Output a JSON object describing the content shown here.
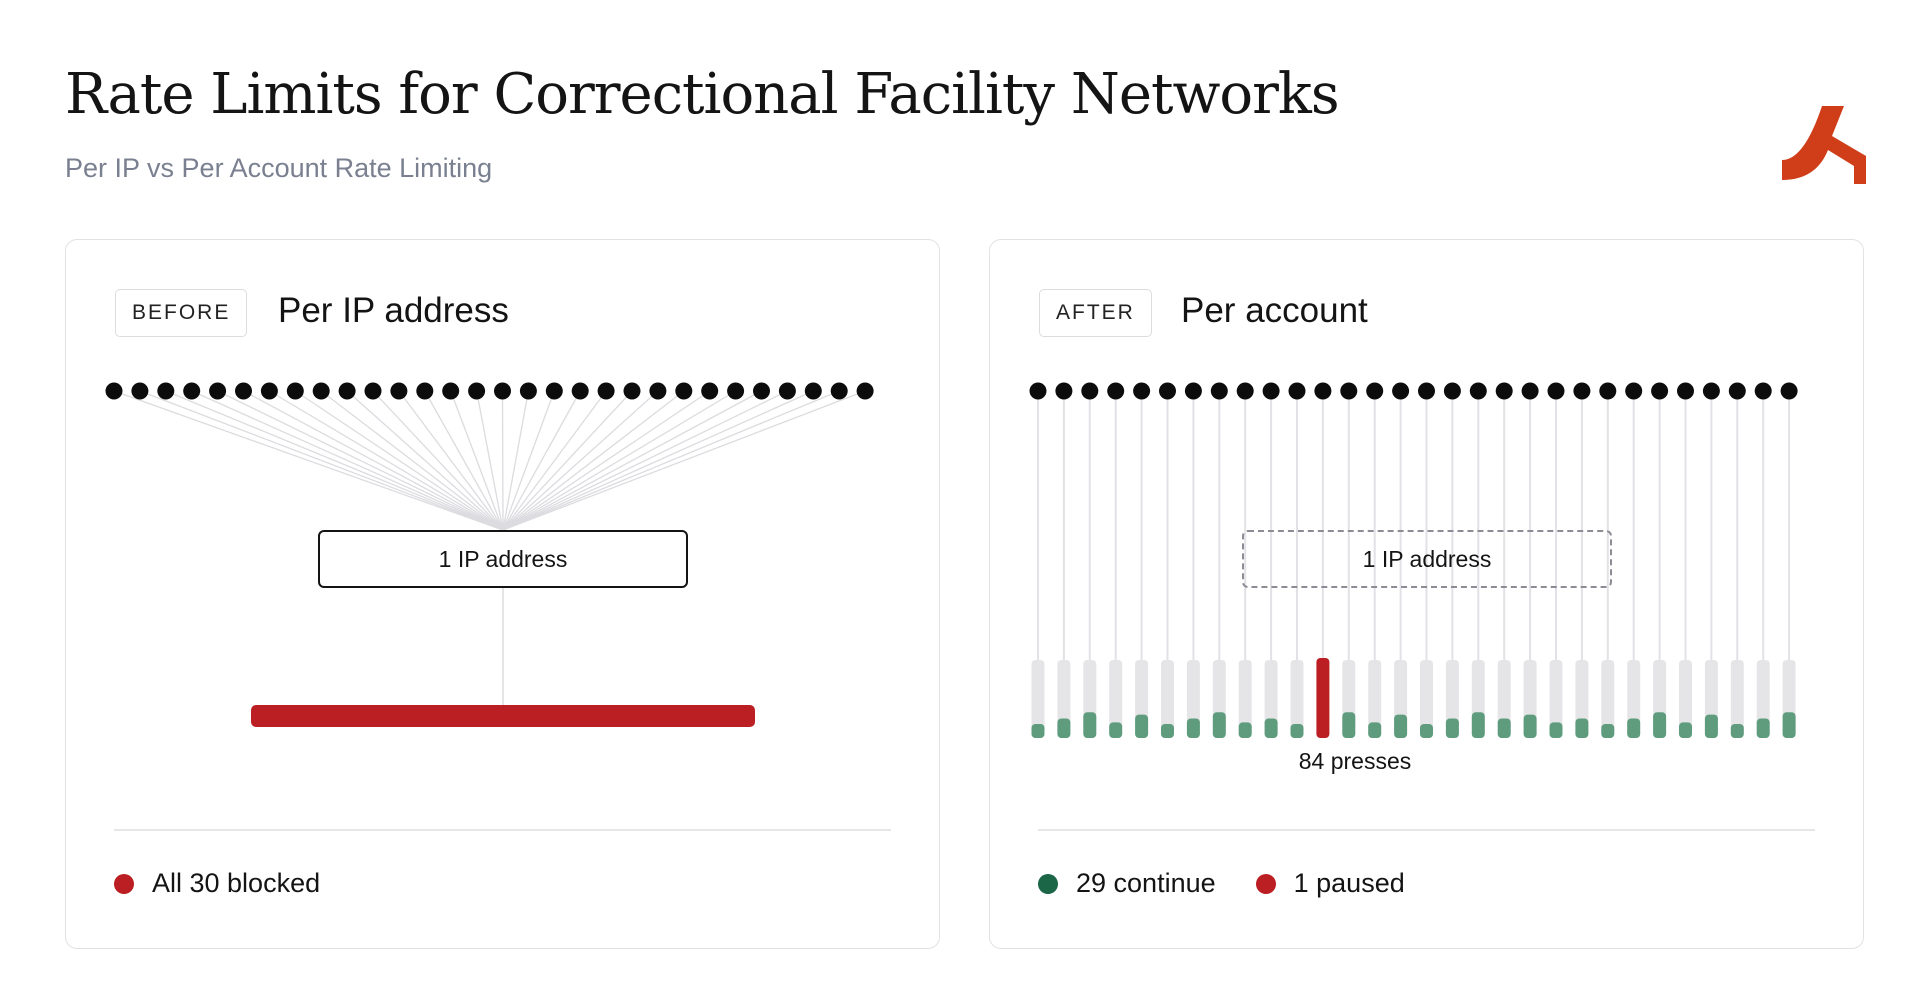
{
  "header": {
    "title": "Rate Limits for Correctional Facility Networks",
    "subtitle": "Per IP vs Per Account Rate Limiting",
    "logo_icon": "brand-logo-icon",
    "logo_color": "#cf3e18"
  },
  "colors": {
    "blocked_red": "#bb1f23",
    "continue_green": "#5e9c7d",
    "legend_green": "#1b6647",
    "track_gray": "#e5e5e8",
    "dot_black": "#0c0c0c"
  },
  "before": {
    "tag": "BEFORE",
    "heading": "Per IP address",
    "client_count": 30,
    "ip_box_label": "1 IP address",
    "legend": [
      {
        "label": "All 30 blocked",
        "color": "#bb1f23"
      }
    ]
  },
  "after": {
    "tag": "AFTER",
    "heading": "Per account",
    "client_count": 30,
    "ip_box_label": "1 IP address",
    "paused_index": 11,
    "paused_label": "84 presses",
    "legend": [
      {
        "label": "29 continue",
        "color": "#1b6647"
      },
      {
        "label": "1 paused",
        "color": "#bb1f23"
      }
    ]
  }
}
